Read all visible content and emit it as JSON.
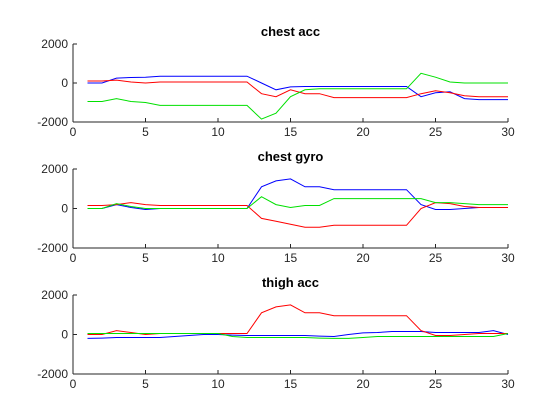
{
  "chart_data": [
    {
      "type": "line",
      "title": "chest acc",
      "xlabel": "",
      "ylabel": "",
      "xlim": [
        0,
        30
      ],
      "ylim": [
        -2000,
        2000
      ],
      "xticks": [
        0,
        5,
        10,
        15,
        20,
        25,
        30
      ],
      "yticks": [
        -2000,
        0,
        2000
      ],
      "grid": false,
      "x": [
        1,
        2,
        3,
        4,
        5,
        6,
        7,
        8,
        9,
        10,
        11,
        12,
        13,
        14,
        15,
        16,
        17,
        18,
        19,
        20,
        21,
        22,
        23,
        24,
        25,
        26,
        27,
        28,
        29,
        30
      ],
      "series": [
        {
          "color": "#0000ff",
          "values": [
            0,
            0,
            250,
            280,
            300,
            350,
            350,
            350,
            350,
            350,
            350,
            350,
            0,
            -350,
            -200,
            -180,
            -180,
            -180,
            -180,
            -180,
            -180,
            -180,
            -180,
            -700,
            -500,
            -450,
            -800,
            -850,
            -850,
            -850
          ]
        },
        {
          "color": "#ff0000",
          "values": [
            100,
            100,
            150,
            50,
            0,
            50,
            50,
            50,
            50,
            50,
            50,
            50,
            -550,
            -700,
            -350,
            -550,
            -550,
            -750,
            -750,
            -750,
            -750,
            -750,
            -750,
            -550,
            -400,
            -500,
            -650,
            -700,
            -700,
            -700
          ]
        },
        {
          "color": "#00e000",
          "values": [
            -950,
            -950,
            -800,
            -950,
            -1000,
            -1150,
            -1150,
            -1150,
            -1150,
            -1150,
            -1150,
            -1150,
            -1850,
            -1550,
            -700,
            -350,
            -300,
            -300,
            -300,
            -300,
            -300,
            -300,
            -300,
            500,
            300,
            50,
            0,
            0,
            0,
            0
          ]
        }
      ]
    },
    {
      "type": "line",
      "title": "chest gyro",
      "xlabel": "",
      "ylabel": "",
      "xlim": [
        0,
        30
      ],
      "ylim": [
        -2000,
        2000
      ],
      "xticks": [
        0,
        5,
        10,
        15,
        20,
        25,
        30
      ],
      "yticks": [
        -2000,
        0,
        2000
      ],
      "grid": false,
      "x": [
        1,
        2,
        3,
        4,
        5,
        6,
        7,
        8,
        9,
        10,
        11,
        12,
        13,
        14,
        15,
        16,
        17,
        18,
        19,
        20,
        21,
        22,
        23,
        24,
        25,
        26,
        27,
        28,
        29,
        30
      ],
      "series": [
        {
          "color": "#0000ff",
          "values": [
            0,
            0,
            200,
            50,
            -50,
            0,
            0,
            0,
            0,
            0,
            0,
            0,
            1100,
            1400,
            1500,
            1100,
            1100,
            950,
            950,
            950,
            950,
            950,
            950,
            200,
            -50,
            -50,
            0,
            50,
            50,
            50
          ]
        },
        {
          "color": "#ff0000",
          "values": [
            150,
            150,
            200,
            300,
            200,
            150,
            150,
            150,
            150,
            150,
            150,
            150,
            -500,
            -650,
            -800,
            -950,
            -950,
            -850,
            -850,
            -850,
            -850,
            -850,
            -850,
            0,
            300,
            250,
            100,
            50,
            50,
            50
          ]
        },
        {
          "color": "#00e000",
          "values": [
            0,
            0,
            250,
            100,
            0,
            0,
            0,
            0,
            0,
            0,
            0,
            0,
            600,
            200,
            50,
            150,
            150,
            500,
            500,
            500,
            500,
            500,
            500,
            500,
            300,
            300,
            250,
            200,
            200,
            200
          ]
        }
      ]
    },
    {
      "type": "line",
      "title": "thigh acc",
      "xlabel": "",
      "ylabel": "",
      "xlim": [
        0,
        30
      ],
      "ylim": [
        -2000,
        2000
      ],
      "xticks": [
        0,
        5,
        10,
        15,
        20,
        25,
        30
      ],
      "yticks": [
        -2000,
        0,
        2000
      ],
      "grid": false,
      "x": [
        1,
        2,
        3,
        4,
        5,
        6,
        7,
        8,
        9,
        10,
        11,
        12,
        13,
        14,
        15,
        16,
        17,
        18,
        19,
        20,
        21,
        22,
        23,
        24,
        25,
        26,
        27,
        28,
        29,
        30
      ],
      "series": [
        {
          "color": "#0000ff",
          "values": [
            -200,
            -180,
            -150,
            -150,
            -150,
            -150,
            -100,
            -50,
            0,
            0,
            -30,
            -50,
            -50,
            -50,
            -50,
            -50,
            -80,
            -100,
            0,
            80,
            100,
            150,
            150,
            150,
            100,
            100,
            100,
            100,
            200,
            0
          ]
        },
        {
          "color": "#ff0000",
          "values": [
            0,
            0,
            200,
            100,
            0,
            50,
            50,
            50,
            50,
            50,
            50,
            50,
            1100,
            1400,
            1500,
            1100,
            1100,
            950,
            950,
            950,
            950,
            950,
            950,
            200,
            -50,
            -50,
            0,
            50,
            50,
            50
          ]
        },
        {
          "color": "#00e000",
          "values": [
            50,
            50,
            50,
            50,
            50,
            50,
            50,
            50,
            50,
            50,
            -100,
            -150,
            -150,
            -150,
            -150,
            -150,
            -180,
            -200,
            -200,
            -150,
            -100,
            -100,
            -100,
            -100,
            -100,
            -100,
            -100,
            -100,
            -100,
            50
          ]
        }
      ]
    }
  ]
}
